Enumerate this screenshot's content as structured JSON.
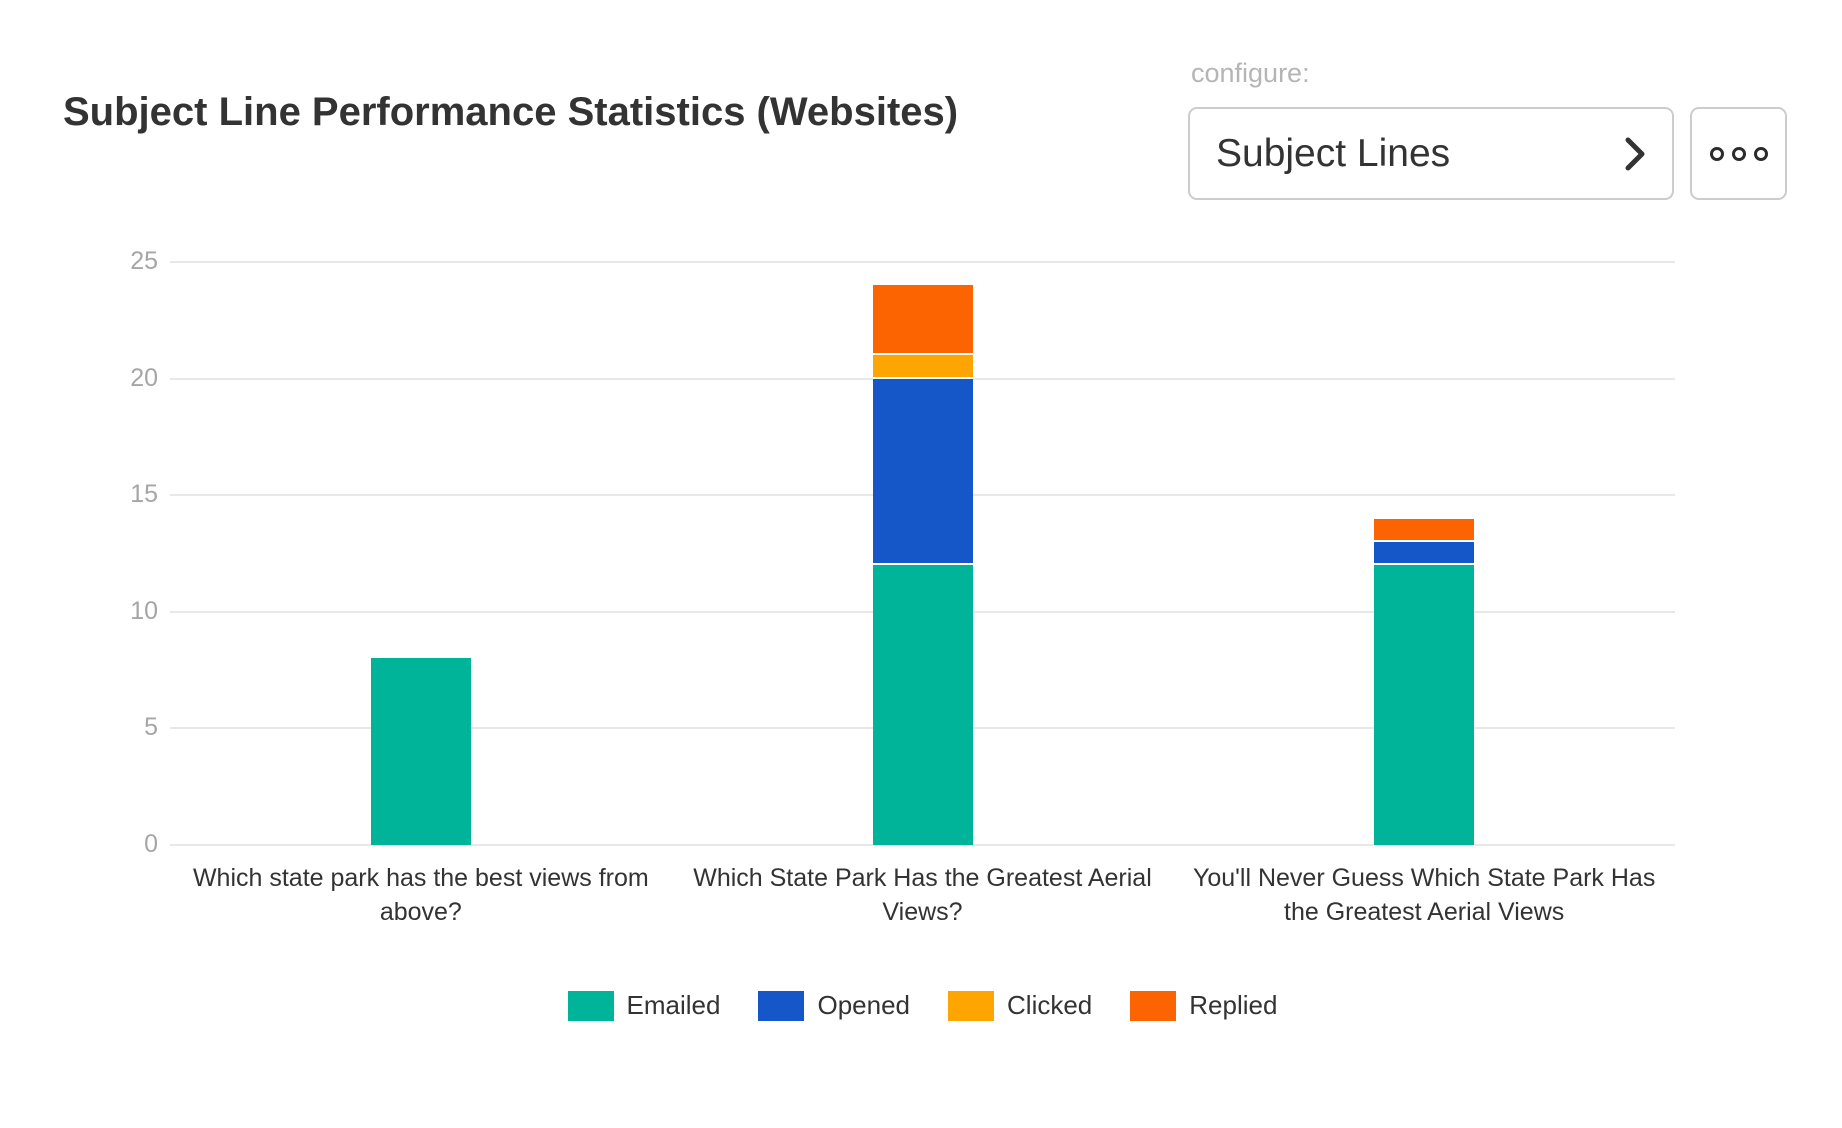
{
  "header": {
    "title": "Subject Line Performance Statistics (Websites)",
    "configure_label": "configure:",
    "dropdown": {
      "value": "Subject Lines",
      "chevron_icon": "chevron-right",
      "more_icon": "ellipsis"
    }
  },
  "colors": {
    "emailed": "#00b49a",
    "opened": "#1556c8",
    "clicked": "#ffa502",
    "replied": "#fb6400",
    "gridline": "#e8e8e8",
    "tick_label": "#a6a6a6",
    "text": "#333333",
    "control_border": "#cccccc"
  },
  "chart_data": {
    "type": "bar",
    "stacked": true,
    "title": "",
    "xlabel": "",
    "ylabel": "",
    "categories": [
      "Which state park has the best views from above?",
      "Which State Park Has the Greatest Aerial Views?",
      "You'll Never Guess Which State Park Has the Greatest Aerial Views"
    ],
    "series": [
      {
        "name": "Emailed",
        "color": "#00b49a",
        "values": [
          8,
          12,
          12
        ]
      },
      {
        "name": "Opened",
        "color": "#1556c8",
        "values": [
          0,
          8,
          1
        ]
      },
      {
        "name": "Clicked",
        "color": "#ffa502",
        "values": [
          0,
          1,
          0
        ]
      },
      {
        "name": "Replied",
        "color": "#fb6400",
        "values": [
          0,
          3,
          1
        ]
      }
    ],
    "totals": [
      8,
      24,
      14
    ],
    "ylim": [
      0,
      25
    ],
    "yticks": [
      0,
      5,
      10,
      15,
      20,
      25
    ],
    "grid": true,
    "legend_position": "bottom"
  }
}
